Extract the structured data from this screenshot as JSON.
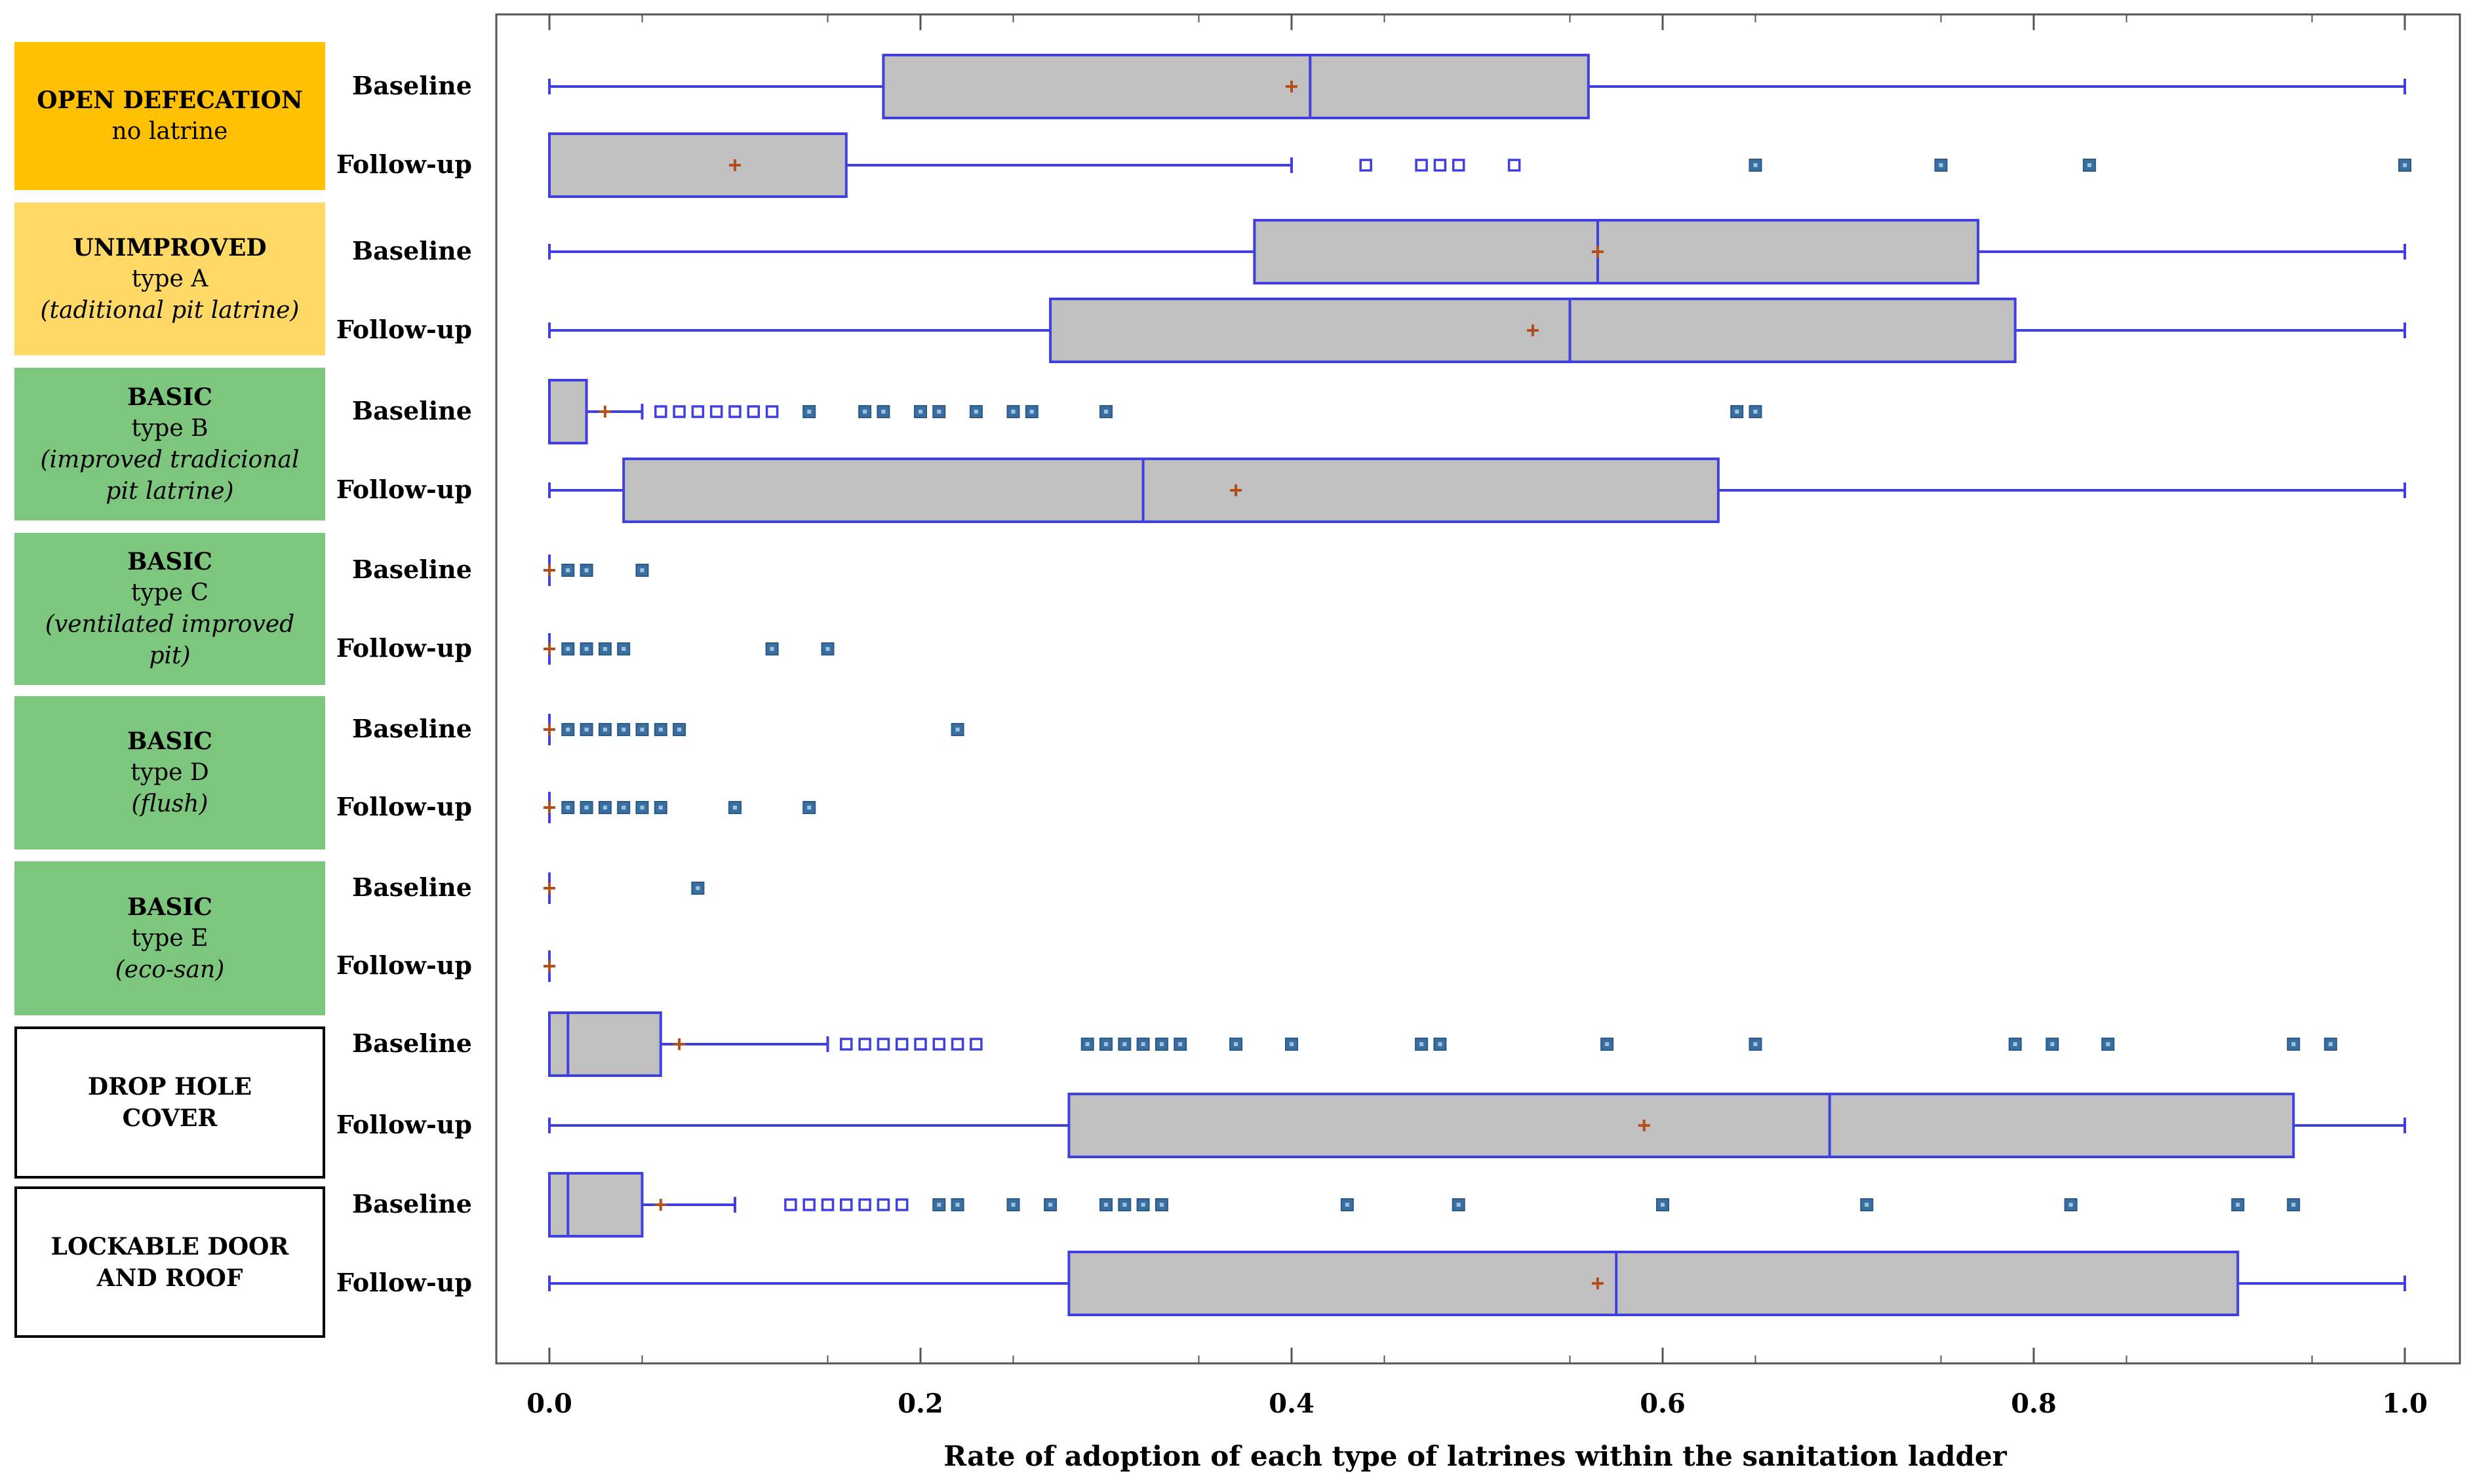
{
  "chart_data": {
    "type": "box",
    "xlabel": "Rate of adoption of each type of latrines within the sanitation ladder",
    "xlim": [
      0.0,
      1.0
    ],
    "xticks": [
      "0.0",
      "0.2",
      "0.4",
      "0.6",
      "0.8",
      "1.0"
    ],
    "colors": {
      "orange": "#FFC000",
      "yellow": "#FFD966",
      "green": "#7DC67E",
      "box_fill": "#C0C0C0",
      "box_stroke": "#4040E0",
      "mean": "#B05020",
      "outlier_mild": "#4040E0",
      "outlier_extreme": "#3A6FA0"
    },
    "categories": [
      {
        "id": "open-defecation",
        "lines": [
          "OPEN DEFECATION",
          "no latrine",
          ""
        ],
        "color": "orange",
        "groups": [
          {
            "label": "Baseline",
            "min": 0.0,
            "q1": 0.18,
            "median": 0.41,
            "q3": 0.56,
            "max": 1.0,
            "mean": 0.4,
            "mild": [],
            "extreme": []
          },
          {
            "label": "Follow-up",
            "min": 0.0,
            "q1": 0.0,
            "median": 0.0,
            "q3": 0.16,
            "max": 0.4,
            "mean": 0.1,
            "mild": [
              0.44,
              0.47,
              0.48,
              0.49,
              0.52
            ],
            "extreme": [
              0.65,
              0.75,
              0.83,
              1.0
            ]
          }
        ]
      },
      {
        "id": "unimproved-type-a",
        "lines": [
          "UNIMPROVED",
          "type A",
          "(taditional pit latrine)"
        ],
        "color": "yellow",
        "groups": [
          {
            "label": "Baseline",
            "min": 0.0,
            "q1": 0.38,
            "median": 0.565,
            "q3": 0.77,
            "max": 1.0,
            "mean": 0.565,
            "mild": [],
            "extreme": []
          },
          {
            "label": "Follow-up",
            "min": 0.0,
            "q1": 0.27,
            "median": 0.55,
            "q3": 0.79,
            "max": 1.0,
            "mean": 0.53,
            "mild": [],
            "extreme": []
          }
        ]
      },
      {
        "id": "basic-type-b",
        "lines": [
          "BASIC",
          "type B",
          "(improved tradicional",
          "pit latrine)"
        ],
        "color": "green",
        "groups": [
          {
            "label": "Baseline",
            "min": 0.0,
            "q1": 0.0,
            "median": 0.0,
            "q3": 0.02,
            "max": 0.05,
            "mean": 0.03,
            "mild": [
              0.06,
              0.07,
              0.08,
              0.09,
              0.1,
              0.11,
              0.12
            ],
            "extreme": [
              0.14,
              0.17,
              0.18,
              0.2,
              0.21,
              0.23,
              0.25,
              0.26,
              0.3,
              0.64,
              0.65
            ]
          },
          {
            "label": "Follow-up",
            "min": 0.0,
            "q1": 0.04,
            "median": 0.32,
            "q3": 0.63,
            "max": 1.0,
            "mean": 0.37,
            "mild": [],
            "extreme": []
          }
        ]
      },
      {
        "id": "basic-type-c",
        "lines": [
          "BASIC",
          "type C",
          "(ventilated improved",
          "pit)"
        ],
        "color": "green",
        "groups": [
          {
            "label": "Baseline",
            "min": 0.0,
            "q1": 0.0,
            "median": 0.0,
            "q3": 0.0,
            "max": 0.0,
            "mean": 0.0,
            "mild": [],
            "extreme": [
              0.01,
              0.02,
              0.05
            ]
          },
          {
            "label": "Follow-up",
            "min": 0.0,
            "q1": 0.0,
            "median": 0.0,
            "q3": 0.0,
            "max": 0.0,
            "mean": 0.0,
            "mild": [],
            "extreme": [
              0.01,
              0.02,
              0.03,
              0.04,
              0.12,
              0.15
            ]
          }
        ]
      },
      {
        "id": "basic-type-d",
        "lines": [
          "BASIC",
          "type D",
          "(flush)"
        ],
        "color": "green",
        "groups": [
          {
            "label": "Baseline",
            "min": 0.0,
            "q1": 0.0,
            "median": 0.0,
            "q3": 0.0,
            "max": 0.0,
            "mean": 0.0,
            "mild": [],
            "extreme": [
              0.01,
              0.02,
              0.03,
              0.04,
              0.05,
              0.06,
              0.07,
              0.22
            ]
          },
          {
            "label": "Follow-up",
            "min": 0.0,
            "q1": 0.0,
            "median": 0.0,
            "q3": 0.0,
            "max": 0.0,
            "mean": 0.0,
            "mild": [],
            "extreme": [
              0.01,
              0.02,
              0.03,
              0.04,
              0.05,
              0.06,
              0.1,
              0.14
            ]
          }
        ]
      },
      {
        "id": "basic-type-e",
        "lines": [
          "BASIC",
          "type E",
          "(eco-san)"
        ],
        "color": "green",
        "groups": [
          {
            "label": "Baseline",
            "min": 0.0,
            "q1": 0.0,
            "median": 0.0,
            "q3": 0.0,
            "max": 0.0,
            "mean": 0.0,
            "mild": [],
            "extreme": [
              0.08
            ]
          },
          {
            "label": "Follow-up",
            "min": 0.0,
            "q1": 0.0,
            "median": 0.0,
            "q3": 0.0,
            "max": 0.0,
            "mean": 0.0,
            "mild": [],
            "extreme": []
          }
        ]
      },
      {
        "id": "drop-hole-cover",
        "lines": [
          "DROP HOLE",
          "COVER"
        ],
        "color": "white",
        "groups": [
          {
            "label": "Baseline",
            "min": 0.0,
            "q1": 0.0,
            "median": 0.01,
            "q3": 0.06,
            "max": 0.15,
            "mean": 0.07,
            "mild": [
              0.16,
              0.17,
              0.18,
              0.19,
              0.2,
              0.21,
              0.22,
              0.23
            ],
            "extreme": [
              0.29,
              0.3,
              0.31,
              0.32,
              0.33,
              0.34,
              0.37,
              0.4,
              0.47,
              0.48,
              0.57,
              0.65,
              0.79,
              0.81,
              0.84,
              0.94,
              0.96
            ]
          },
          {
            "label": "Follow-up",
            "min": 0.0,
            "q1": 0.28,
            "median": 0.69,
            "q3": 0.94,
            "max": 1.0,
            "mean": 0.59,
            "mild": [],
            "extreme": []
          }
        ]
      },
      {
        "id": "lockable-door-and-roof",
        "lines": [
          "LOCKABLE DOOR",
          "AND ROOF"
        ],
        "color": "white",
        "groups": [
          {
            "label": "Baseline",
            "min": 0.0,
            "q1": 0.0,
            "median": 0.01,
            "q3": 0.05,
            "max": 0.1,
            "mean": 0.06,
            "mild": [
              0.13,
              0.14,
              0.15,
              0.16,
              0.17,
              0.18,
              0.19
            ],
            "extreme": [
              0.21,
              0.22,
              0.25,
              0.27,
              0.3,
              0.31,
              0.32,
              0.33,
              0.43,
              0.49,
              0.6,
              0.71,
              0.82,
              0.91,
              0.94
            ]
          },
          {
            "label": "Follow-up",
            "min": 0.0,
            "q1": 0.28,
            "median": 0.575,
            "q3": 0.91,
            "max": 1.0,
            "mean": 0.565,
            "mild": [],
            "extreme": []
          }
        ]
      }
    ]
  }
}
